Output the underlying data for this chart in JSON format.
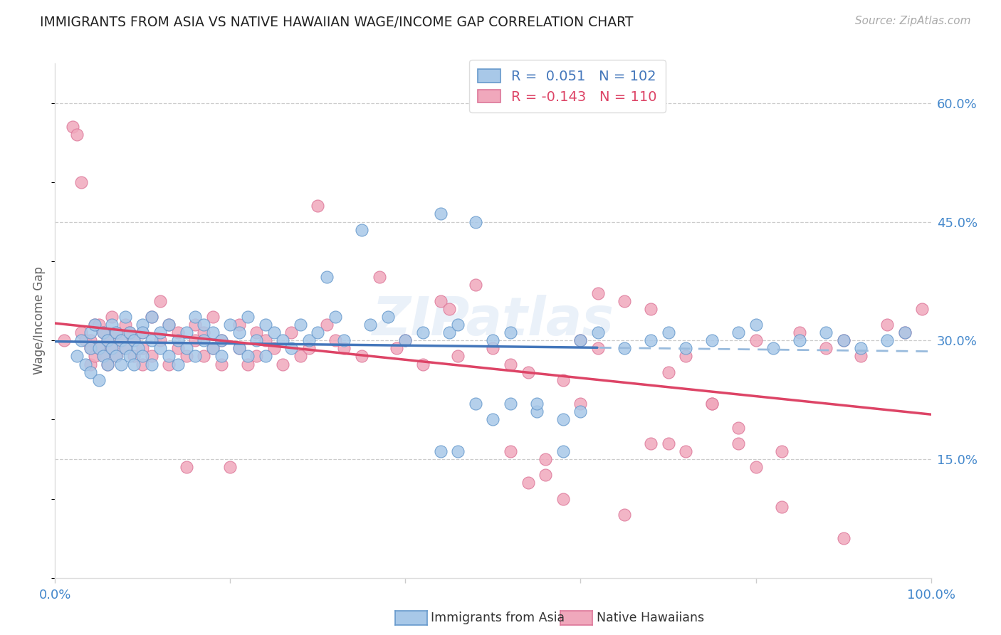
{
  "title": "IMMIGRANTS FROM ASIA VS NATIVE HAWAIIAN WAGE/INCOME GAP CORRELATION CHART",
  "source": "Source: ZipAtlas.com",
  "ylabel": "Wage/Income Gap",
  "xlim": [
    0.0,
    1.0
  ],
  "ylim": [
    0.0,
    0.65
  ],
  "yticks": [
    0.15,
    0.3,
    0.45,
    0.6
  ],
  "ytick_labels": [
    "15.0%",
    "30.0%",
    "45.0%",
    "60.0%"
  ],
  "blue_R": 0.051,
  "blue_N": 102,
  "pink_R": -0.143,
  "pink_N": 110,
  "blue_fill": "#A8C8E8",
  "pink_fill": "#F0A8BC",
  "blue_edge": "#6699CC",
  "pink_edge": "#DD7799",
  "blue_line": "#4477BB",
  "pink_line": "#DD4466",
  "blue_dash": "#99BBDD",
  "legend_label_blue": "Immigrants from Asia",
  "legend_label_pink": "Native Hawaiians",
  "watermark": "ZIPatlas",
  "title_color": "#222222",
  "axis_color": "#4488CC",
  "grid_color": "#CCCCCC",
  "bg_color": "#FFFFFF",
  "blue_scatter_x": [
    0.025,
    0.03,
    0.035,
    0.04,
    0.04,
    0.04,
    0.045,
    0.05,
    0.05,
    0.055,
    0.055,
    0.06,
    0.06,
    0.065,
    0.065,
    0.07,
    0.07,
    0.075,
    0.075,
    0.08,
    0.08,
    0.085,
    0.085,
    0.09,
    0.09,
    0.095,
    0.1,
    0.1,
    0.1,
    0.11,
    0.11,
    0.11,
    0.12,
    0.12,
    0.13,
    0.13,
    0.14,
    0.14,
    0.15,
    0.15,
    0.16,
    0.16,
    0.17,
    0.17,
    0.18,
    0.18,
    0.19,
    0.19,
    0.2,
    0.21,
    0.21,
    0.22,
    0.22,
    0.23,
    0.24,
    0.24,
    0.25,
    0.26,
    0.27,
    0.28,
    0.29,
    0.3,
    0.31,
    0.32,
    0.33,
    0.35,
    0.36,
    0.38,
    0.4,
    0.42,
    0.44,
    0.45,
    0.46,
    0.48,
    0.5,
    0.52,
    0.55,
    0.58,
    0.6,
    0.62,
    0.65,
    0.68,
    0.7,
    0.72,
    0.75,
    0.78,
    0.8,
    0.82,
    0.85,
    0.88,
    0.9,
    0.92,
    0.95,
    0.97,
    0.44,
    0.46,
    0.48,
    0.5,
    0.52,
    0.55,
    0.58,
    0.6
  ],
  "blue_scatter_y": [
    0.28,
    0.3,
    0.27,
    0.31,
    0.26,
    0.29,
    0.32,
    0.25,
    0.29,
    0.28,
    0.31,
    0.27,
    0.3,
    0.29,
    0.32,
    0.28,
    0.31,
    0.27,
    0.3,
    0.29,
    0.33,
    0.28,
    0.31,
    0.27,
    0.3,
    0.29,
    0.32,
    0.28,
    0.31,
    0.27,
    0.3,
    0.33,
    0.29,
    0.31,
    0.28,
    0.32,
    0.3,
    0.27,
    0.31,
    0.29,
    0.33,
    0.28,
    0.3,
    0.32,
    0.29,
    0.31,
    0.28,
    0.3,
    0.32,
    0.29,
    0.31,
    0.28,
    0.33,
    0.3,
    0.28,
    0.32,
    0.31,
    0.3,
    0.29,
    0.32,
    0.3,
    0.31,
    0.38,
    0.33,
    0.3,
    0.44,
    0.32,
    0.33,
    0.3,
    0.31,
    0.46,
    0.31,
    0.32,
    0.45,
    0.3,
    0.31,
    0.21,
    0.16,
    0.3,
    0.31,
    0.29,
    0.3,
    0.31,
    0.29,
    0.3,
    0.31,
    0.32,
    0.29,
    0.3,
    0.31,
    0.3,
    0.29,
    0.3,
    0.31,
    0.16,
    0.16,
    0.22,
    0.2,
    0.22,
    0.22,
    0.2,
    0.21
  ],
  "pink_scatter_x": [
    0.01,
    0.02,
    0.025,
    0.03,
    0.03,
    0.035,
    0.04,
    0.04,
    0.04,
    0.045,
    0.045,
    0.05,
    0.05,
    0.055,
    0.055,
    0.06,
    0.06,
    0.065,
    0.065,
    0.07,
    0.07,
    0.075,
    0.08,
    0.08,
    0.085,
    0.09,
    0.09,
    0.1,
    0.1,
    0.1,
    0.11,
    0.11,
    0.12,
    0.12,
    0.13,
    0.13,
    0.14,
    0.14,
    0.15,
    0.15,
    0.16,
    0.16,
    0.17,
    0.17,
    0.18,
    0.18,
    0.19,
    0.19,
    0.2,
    0.21,
    0.21,
    0.22,
    0.23,
    0.23,
    0.24,
    0.25,
    0.26,
    0.27,
    0.28,
    0.29,
    0.3,
    0.31,
    0.32,
    0.33,
    0.35,
    0.37,
    0.39,
    0.4,
    0.42,
    0.44,
    0.45,
    0.46,
    0.48,
    0.5,
    0.52,
    0.54,
    0.56,
    0.58,
    0.6,
    0.62,
    0.65,
    0.68,
    0.7,
    0.72,
    0.75,
    0.78,
    0.8,
    0.83,
    0.85,
    0.88,
    0.9,
    0.92,
    0.95,
    0.97,
    0.99,
    0.52,
    0.54,
    0.56,
    0.58,
    0.6,
    0.62,
    0.65,
    0.68,
    0.7,
    0.72,
    0.75,
    0.78,
    0.8,
    0.83,
    0.9
  ],
  "pink_scatter_y": [
    0.3,
    0.57,
    0.56,
    0.31,
    0.5,
    0.3,
    0.27,
    0.3,
    0.29,
    0.32,
    0.28,
    0.29,
    0.32,
    0.28,
    0.31,
    0.27,
    0.3,
    0.33,
    0.29,
    0.31,
    0.28,
    0.3,
    0.29,
    0.32,
    0.31,
    0.28,
    0.3,
    0.27,
    0.31,
    0.29,
    0.33,
    0.28,
    0.35,
    0.3,
    0.27,
    0.32,
    0.29,
    0.31,
    0.28,
    0.14,
    0.3,
    0.32,
    0.28,
    0.31,
    0.33,
    0.29,
    0.27,
    0.3,
    0.14,
    0.29,
    0.32,
    0.27,
    0.31,
    0.28,
    0.3,
    0.29,
    0.27,
    0.31,
    0.28,
    0.29,
    0.47,
    0.32,
    0.3,
    0.29,
    0.28,
    0.38,
    0.29,
    0.3,
    0.27,
    0.35,
    0.34,
    0.28,
    0.37,
    0.29,
    0.27,
    0.26,
    0.15,
    0.25,
    0.3,
    0.29,
    0.35,
    0.34,
    0.26,
    0.28,
    0.22,
    0.17,
    0.3,
    0.09,
    0.31,
    0.29,
    0.3,
    0.28,
    0.32,
    0.31,
    0.34,
    0.16,
    0.12,
    0.13,
    0.1,
    0.22,
    0.36,
    0.08,
    0.17,
    0.17,
    0.16,
    0.22,
    0.19,
    0.14,
    0.16,
    0.05
  ]
}
